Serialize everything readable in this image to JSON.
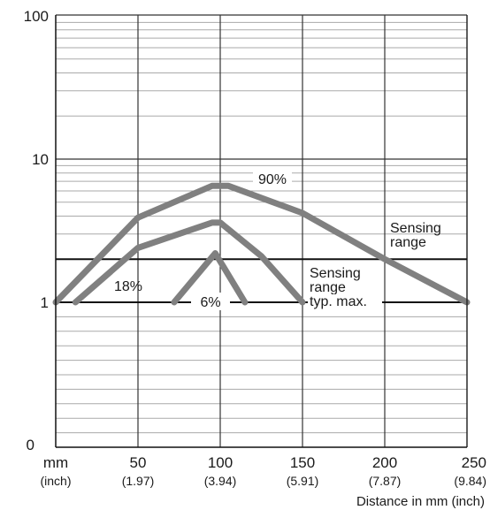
{
  "chart_data": {
    "type": "line",
    "x_axis": {
      "unit_label": "mm",
      "unit_sub_label": "(inch)",
      "ticks": [
        {
          "value": 50,
          "label": "50",
          "sub": "(1.97)"
        },
        {
          "value": 100,
          "label": "100",
          "sub": "(3.94)"
        },
        {
          "value": 150,
          "label": "150",
          "sub": "(5.91)"
        },
        {
          "value": 200,
          "label": "200",
          "sub": "(7.87)"
        },
        {
          "value": 250,
          "label": "250",
          "sub": "(9.84)"
        }
      ],
      "xlim": [
        0,
        250
      ],
      "title": "Distance in mm (inch)"
    },
    "y_axis": {
      "scale": "log",
      "ticks": [
        {
          "value": 1,
          "label": "1"
        },
        {
          "value": 10,
          "label": "10"
        },
        {
          "value": 100,
          "label": "100"
        }
      ],
      "bottom_label": "0",
      "ylim": [
        0.1,
        100
      ]
    },
    "grid": true,
    "series": [
      {
        "name": "90%",
        "points": [
          [
            0,
            1.0
          ],
          [
            50,
            3.9
          ],
          [
            95,
            6.5
          ],
          [
            105,
            6.5
          ],
          [
            150,
            4.2
          ],
          [
            200,
            2.0
          ],
          [
            250,
            1.0
          ]
        ]
      },
      {
        "name": "18%",
        "points": [
          [
            12,
            1.0
          ],
          [
            50,
            2.4
          ],
          [
            95,
            3.6
          ],
          [
            100,
            3.6
          ],
          [
            125,
            2.1
          ],
          [
            150,
            1.0
          ]
        ]
      },
      {
        "name": "6%",
        "points": [
          [
            72,
            1.0
          ],
          [
            97,
            2.2
          ],
          [
            115,
            1.0
          ]
        ]
      }
    ],
    "reference_lines": [
      {
        "value": 2.0,
        "label_lines": [
          "Sensing",
          "range"
        ]
      },
      {
        "value": 1.0,
        "label_lines": [
          "Sensing",
          "range",
          "typ. max."
        ]
      }
    ],
    "colors": {
      "curve": "#808080",
      "grid": "#aaaaaa",
      "axis": "#1a1a1a"
    }
  }
}
